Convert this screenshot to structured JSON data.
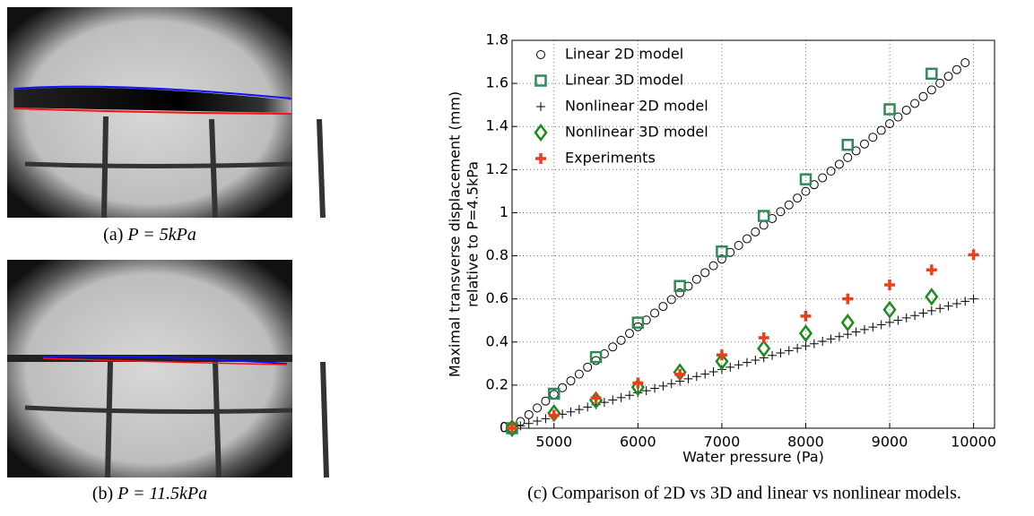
{
  "panels": [
    {
      "label": "(a)",
      "formula": "P = 5kPa"
    },
    {
      "label": "(b)",
      "formula": "P = 11.5kPa"
    }
  ],
  "chart_caption": "(c) Comparison of 2D vs 3D and linear vs nonlinear models.",
  "chart_data": {
    "type": "scatter",
    "xlabel": "Water pressure (Pa)",
    "ylabel": [
      "Maximal transverse displacement (mm)",
      "relative to P=4.5kPa"
    ],
    "xlim": [
      4500,
      10250
    ],
    "ylim": [
      0,
      1.8
    ],
    "xticks": [
      5000,
      6000,
      7000,
      8000,
      9000,
      10000
    ],
    "yticks": [
      0,
      0.2,
      0.4,
      0.6,
      0.8,
      1,
      1.2,
      1.4,
      1.6,
      1.8
    ],
    "grid": true,
    "legend": "upper left",
    "series": [
      {
        "name": "Linear 2D model",
        "color": "#000000",
        "marker": "circle",
        "x": [
          4500,
          4600,
          4700,
          4800,
          4900,
          5000,
          5100,
          5200,
          5300,
          5400,
          5500,
          5600,
          5700,
          5800,
          5900,
          6000,
          6100,
          6200,
          6300,
          6400,
          6500,
          6600,
          6700,
          6800,
          6900,
          7000,
          7100,
          7200,
          7300,
          7400,
          7500,
          7600,
          7700,
          7800,
          7900,
          8000,
          8100,
          8200,
          8300,
          8400,
          8500,
          8600,
          8700,
          8800,
          8900,
          9000,
          9100,
          9200,
          9300,
          9400,
          9500,
          9600,
          9700,
          9800,
          9900
        ],
        "values": [
          0,
          0.031,
          0.063,
          0.094,
          0.126,
          0.157,
          0.188,
          0.22,
          0.251,
          0.283,
          0.314,
          0.345,
          0.377,
          0.408,
          0.44,
          0.471,
          0.502,
          0.534,
          0.565,
          0.597,
          0.628,
          0.659,
          0.691,
          0.722,
          0.754,
          0.785,
          0.816,
          0.848,
          0.879,
          0.911,
          0.942,
          0.973,
          1.005,
          1.036,
          1.068,
          1.099,
          1.13,
          1.162,
          1.193,
          1.225,
          1.256,
          1.287,
          1.319,
          1.35,
          1.382,
          1.413,
          1.444,
          1.476,
          1.507,
          1.539,
          1.57,
          1.601,
          1.633,
          1.664,
          1.696
        ]
      },
      {
        "name": "Linear 3D model",
        "color": "#2e8b57",
        "marker": "square",
        "x": [
          4500,
          5000,
          5500,
          6000,
          6500,
          7000,
          7500,
          8000,
          8500,
          9000,
          9500
        ],
        "values": [
          0,
          0.16,
          0.33,
          0.49,
          0.66,
          0.82,
          0.985,
          1.155,
          1.315,
          1.48,
          1.645
        ]
      },
      {
        "name": "Nonlinear 2D  model",
        "color": "#000000",
        "marker": "plus",
        "x": [
          4500,
          4600,
          4700,
          4800,
          4900,
          5000,
          5100,
          5200,
          5300,
          5400,
          5500,
          5600,
          5700,
          5800,
          5900,
          6000,
          6100,
          6200,
          6300,
          6400,
          6500,
          6600,
          6700,
          6800,
          6900,
          7000,
          7100,
          7200,
          7300,
          7400,
          7500,
          7600,
          7700,
          7800,
          7900,
          8000,
          8100,
          8200,
          8300,
          8400,
          8500,
          8600,
          8700,
          8800,
          8900,
          9000,
          9100,
          9200,
          9300,
          9400,
          9500,
          9600,
          9700,
          9800,
          9900,
          10000
        ],
        "values": [
          0,
          0.011,
          0.022,
          0.033,
          0.044,
          0.055,
          0.065,
          0.076,
          0.087,
          0.098,
          0.109,
          0.12,
          0.131,
          0.142,
          0.153,
          0.164,
          0.174,
          0.185,
          0.196,
          0.207,
          0.218,
          0.229,
          0.24,
          0.251,
          0.262,
          0.273,
          0.283,
          0.294,
          0.305,
          0.316,
          0.327,
          0.338,
          0.349,
          0.36,
          0.371,
          0.382,
          0.392,
          0.403,
          0.414,
          0.425,
          0.436,
          0.447,
          0.458,
          0.469,
          0.48,
          0.491,
          0.501,
          0.512,
          0.523,
          0.534,
          0.545,
          0.556,
          0.567,
          0.578,
          0.589,
          0.6
        ]
      },
      {
        "name": "Nonlinear 3D  model",
        "color": "#1a8c1a",
        "marker": "diamond",
        "x": [
          4500,
          5000,
          5500,
          6000,
          6500,
          7000,
          7500,
          8000,
          8500,
          9000,
          9500
        ],
        "values": [
          0,
          0.07,
          0.13,
          0.19,
          0.26,
          0.31,
          0.37,
          0.44,
          0.49,
          0.55,
          0.61
        ]
      },
      {
        "name": "Experiments",
        "color": "#e8401c",
        "marker": "thickplus",
        "x": [
          4500,
          5000,
          5500,
          6000,
          6500,
          7000,
          7500,
          8000,
          8500,
          9000,
          9500,
          10000
        ],
        "values": [
          0,
          0.06,
          0.14,
          0.21,
          0.25,
          0.34,
          0.42,
          0.52,
          0.6,
          0.665,
          0.735,
          0.805
        ]
      }
    ]
  }
}
